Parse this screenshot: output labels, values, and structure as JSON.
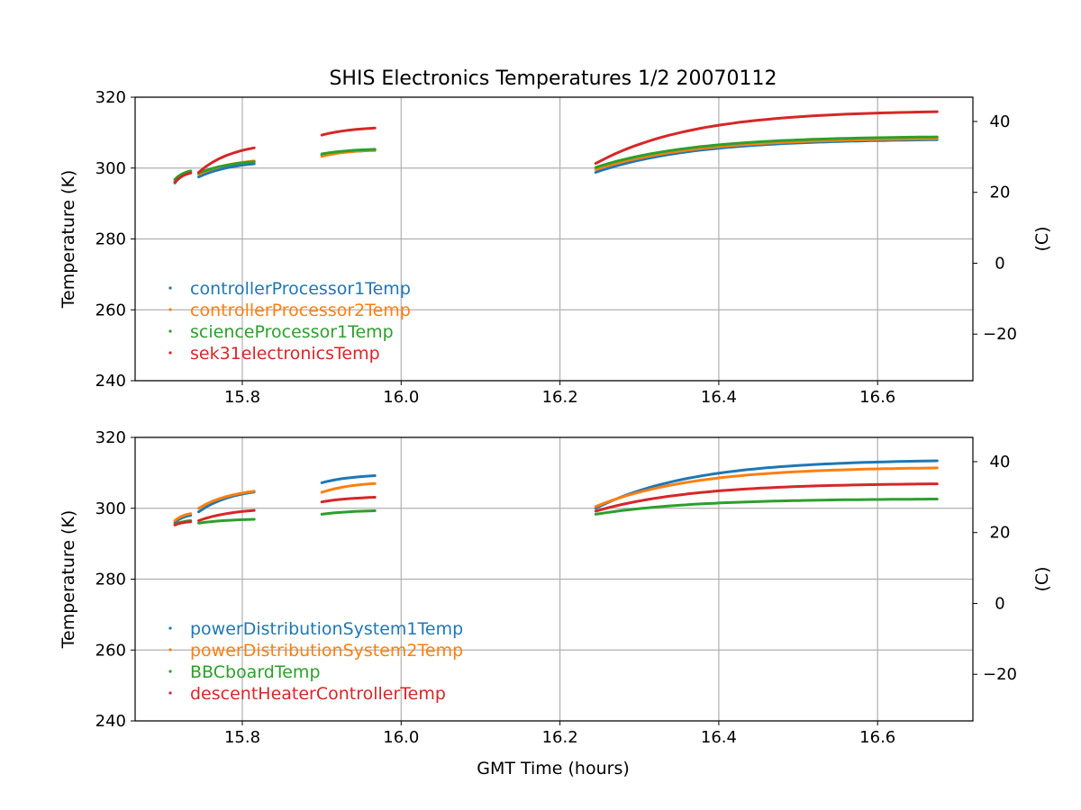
{
  "figure": {
    "title": "SHIS Electronics Temperatures 1/2 20070112",
    "xlabel": "GMT Time (hours)"
  },
  "chart_data": [
    {
      "type": "scatter",
      "ylabel": "Temperature (K)",
      "y2label": "(C)",
      "xlim": [
        15.665,
        16.72
      ],
      "ylim": [
        240,
        320
      ],
      "y2lim": [
        -33.15,
        46.85
      ],
      "x_ticks": [
        "15.8",
        "16.0",
        "16.2",
        "16.4",
        "16.6"
      ],
      "y_ticks": [
        "240",
        "260",
        "280",
        "300",
        "320"
      ],
      "y2_ticks": [
        "−20",
        "0",
        "20",
        "40"
      ],
      "grid": true,
      "legend_position": "lower left",
      "segments_x": [
        [
          15.715,
          15.735
        ],
        [
          15.745,
          15.815
        ],
        [
          15.9,
          15.967
        ],
        [
          16.245,
          16.675
        ]
      ],
      "series": [
        {
          "name": "controllerProcessor1Temp",
          "color": "#1f77b4",
          "values": [
            [
              295.8,
              298.8
            ],
            [
              297.5,
              301.2
            ],
            [
              303.7,
              305.0
            ],
            [
              298.8,
              308.0
            ]
          ]
        },
        {
          "name": "controllerProcessor2Temp",
          "color": "#ff7f0e",
          "values": [
            [
              296.3,
              299.0
            ],
            [
              298.2,
              302.0
            ],
            [
              303.3,
              305.1
            ],
            [
              299.6,
              308.3
            ]
          ]
        },
        {
          "name": "scienceProcessor1Temp",
          "color": "#2ca02c",
          "values": [
            [
              296.8,
              299.2
            ],
            [
              298.6,
              301.8
            ],
            [
              304.0,
              305.3
            ],
            [
              300.2,
              308.8
            ]
          ]
        },
        {
          "name": "sek31electronicsTemp",
          "color": "#d62728",
          "values": [
            [
              296.0,
              298.6
            ],
            [
              298.8,
              305.7
            ],
            [
              309.3,
              311.3
            ],
            [
              301.3,
              315.9
            ]
          ]
        }
      ]
    },
    {
      "type": "scatter",
      "ylabel": "Temperature (K)",
      "y2label": "(C)",
      "xlim": [
        15.665,
        16.72
      ],
      "ylim": [
        240,
        320
      ],
      "y2lim": [
        -33.15,
        46.85
      ],
      "x_ticks": [
        "15.8",
        "16.0",
        "16.2",
        "16.4",
        "16.6"
      ],
      "y_ticks": [
        "240",
        "260",
        "280",
        "300",
        "320"
      ],
      "y2_ticks": [
        "−20",
        "0",
        "20",
        "40"
      ],
      "grid": true,
      "legend_position": "lower left",
      "segments_x": [
        [
          15.715,
          15.735
        ],
        [
          15.745,
          15.815
        ],
        [
          15.9,
          15.967
        ],
        [
          16.245,
          16.675
        ]
      ],
      "series": [
        {
          "name": "powerDistributionSystem1Temp",
          "color": "#1f77b4",
          "values": [
            [
              296.0,
              298.0
            ],
            [
              299.0,
              304.6
            ],
            [
              307.2,
              309.2
            ],
            [
              300.0,
              313.4
            ]
          ]
        },
        {
          "name": "powerDistributionSystem2Temp",
          "color": "#ff7f0e",
          "values": [
            [
              296.5,
              298.5
            ],
            [
              300.0,
              304.8
            ],
            [
              304.5,
              307.0
            ],
            [
              300.5,
              311.4
            ]
          ]
        },
        {
          "name": "BBCboardTemp",
          "color": "#2ca02c",
          "values": [
            [
              295.5,
              296.5
            ],
            [
              295.8,
              296.9
            ],
            [
              298.3,
              299.3
            ],
            [
              298.3,
              302.6
            ]
          ]
        },
        {
          "name": "descentHeaterControllerTemp",
          "color": "#d62728",
          "values": [
            [
              295.3,
              296.2
            ],
            [
              296.5,
              299.4
            ],
            [
              301.8,
              303.1
            ],
            [
              299.2,
              306.9
            ]
          ]
        }
      ]
    }
  ]
}
